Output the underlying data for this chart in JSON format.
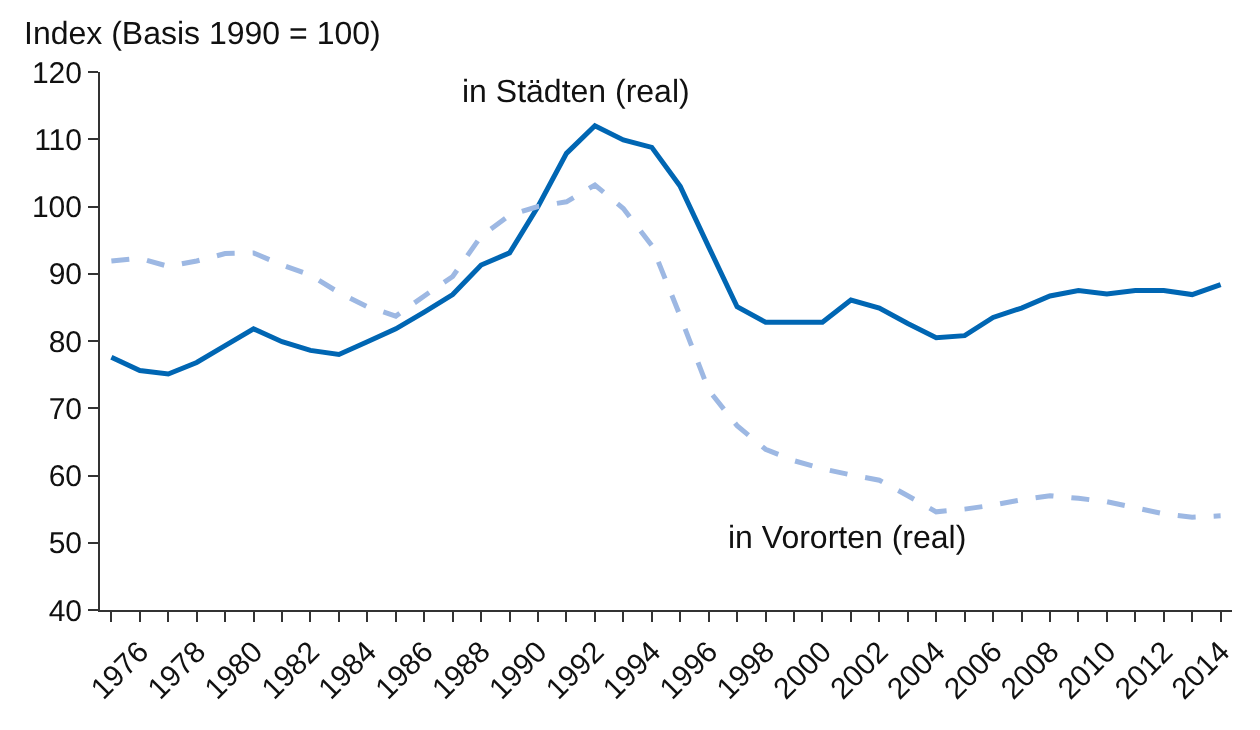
{
  "chart_data": {
    "type": "line",
    "ylabel": "Index (Basis 1990 = 100)",
    "x": [
      1975,
      1976,
      1977,
      1978,
      1979,
      1980,
      1981,
      1982,
      1983,
      1984,
      1985,
      1986,
      1987,
      1988,
      1989,
      1990,
      1991,
      1992,
      1993,
      1994,
      1995,
      1996,
      1997,
      1998,
      1999,
      2000,
      2001,
      2002,
      2003,
      2004,
      2005,
      2006,
      2007,
      2008,
      2009,
      2010,
      2011,
      2012,
      2013,
      2014
    ],
    "series": [
      {
        "name": "in Städten (real)",
        "color": "#0066b3",
        "line_style": "solid",
        "values": [
          77.6,
          75.6,
          75.1,
          76.8,
          79.3,
          81.8,
          79.9,
          78.6,
          78.0,
          79.9,
          81.8,
          84.3,
          86.9,
          91.3,
          93.1,
          100,
          107.9,
          112,
          109.9,
          108.8,
          103,
          94,
          85.1,
          82.8,
          82.8,
          82.8,
          86.1,
          84.9,
          82.6,
          80.5,
          80.8,
          83.5,
          84.9,
          86.7,
          87.5,
          87.0,
          87.5,
          87.5,
          86.9,
          88.4
        ]
      },
      {
        "name": "in Vororten (real)",
        "color": "#9db8e3",
        "line_style": "dashed",
        "values": [
          91.9,
          92.3,
          91.1,
          91.9,
          93.0,
          93.1,
          91.3,
          89.8,
          87.2,
          85.1,
          83.7,
          86.7,
          89.6,
          95.6,
          98.7,
          100,
          100.7,
          103.2,
          99.7,
          94.2,
          83.7,
          72.7,
          67.4,
          63.9,
          62.2,
          61.0,
          60.1,
          59.3,
          57.0,
          54.6,
          55.0,
          55.6,
          56.4,
          57.0,
          56.6,
          56.1,
          55.2,
          54.3,
          53.8,
          54.0
        ]
      }
    ],
    "xlim": [
      1974.6,
      2014.4
    ],
    "xticks": [
      {
        "value": 1975,
        "label": null
      },
      1976,
      {
        "value": 1977,
        "label": null
      },
      1978,
      {
        "value": 1979,
        "label": null
      },
      1980,
      {
        "value": 1981,
        "label": null
      },
      1982,
      {
        "value": 1983,
        "label": null
      },
      1984,
      {
        "value": 1985,
        "label": null
      },
      1986,
      {
        "value": 1987,
        "label": null
      },
      1988,
      {
        "value": 1989,
        "label": null
      },
      1990,
      {
        "value": 1991,
        "label": null
      },
      1992,
      {
        "value": 1993,
        "label": null
      },
      1994,
      {
        "value": 1995,
        "label": null
      },
      1996,
      {
        "value": 1997,
        "label": null
      },
      1998,
      {
        "value": 1999,
        "label": null
      },
      2000,
      {
        "value": 2001,
        "label": null
      },
      2002,
      {
        "value": 2003,
        "label": null
      },
      2004,
      {
        "value": 2005,
        "label": null
      },
      2006,
      {
        "value": 2007,
        "label": null
      },
      2008,
      {
        "value": 2009,
        "label": null
      },
      2010,
      {
        "value": 2011,
        "label": null
      },
      2012,
      {
        "value": 2013,
        "label": null
      },
      2014
    ],
    "ylim": [
      40,
      120
    ],
    "yticks": [
      40,
      50,
      60,
      70,
      80,
      90,
      100,
      110,
      120
    ],
    "legend": false,
    "marker": "none"
  }
}
